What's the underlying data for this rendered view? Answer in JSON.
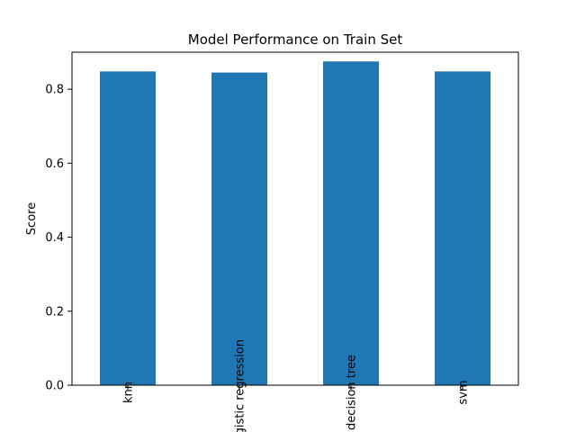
{
  "chart_data": {
    "type": "bar",
    "title": "Model Performance on Train Set",
    "xlabel": "",
    "ylabel": "Score",
    "categories": [
      "knn",
      "logistic regression",
      "decision tree",
      "svm"
    ],
    "values": [
      0.848,
      0.845,
      0.875,
      0.848
    ],
    "ylim": [
      0,
      0.9
    ],
    "yticks": [
      0.0,
      0.2,
      0.4,
      0.6,
      0.8
    ],
    "ytick_labels": [
      "0.0",
      "0.2",
      "0.4",
      "0.6",
      "0.8"
    ],
    "bar_color": "#1f77b4",
    "grid": false,
    "legend": "none"
  }
}
